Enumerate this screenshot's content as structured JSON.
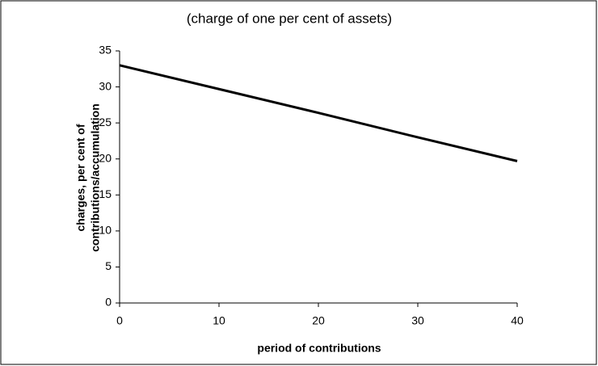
{
  "chart_data": {
    "type": "line",
    "title": "(charge of one per cent of assets)",
    "x_label": "period of contributions",
    "y_label": [
      "charges, per cent of",
      "contributions/accumulation"
    ],
    "x": [
      0,
      10,
      20,
      30,
      40
    ],
    "values": [
      33,
      29.7,
      26.4,
      23.0,
      19.7
    ],
    "color": "#000000",
    "xlim": [
      0,
      40
    ],
    "xticks": [
      0,
      10,
      20,
      30,
      40
    ],
    "ylim": [
      0,
      35
    ],
    "yticks": [
      0,
      5,
      10,
      15,
      20,
      25,
      30,
      35
    ],
    "grid": false
  }
}
